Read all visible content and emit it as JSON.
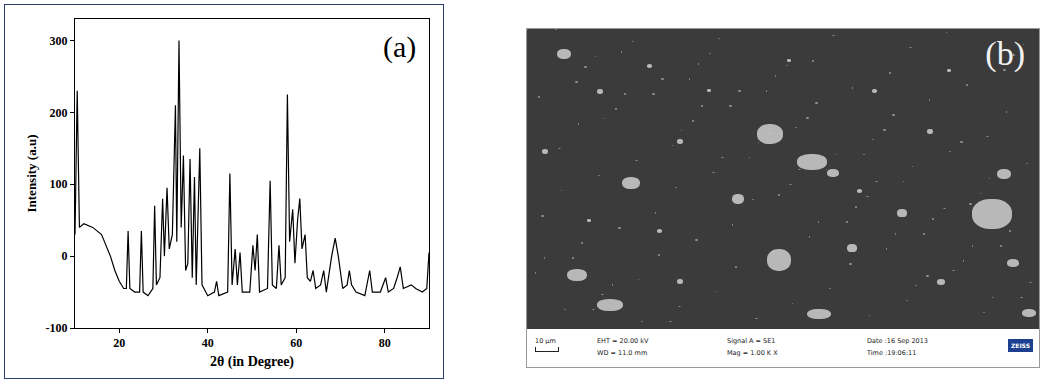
{
  "chart_data": {
    "type": "line",
    "x": [
      10.0,
      10.5,
      11.0,
      12,
      14,
      16,
      17,
      18,
      19,
      20,
      21,
      21.6,
      22.0,
      22.4,
      23.5,
      24.6,
      25.0,
      25.4,
      26.5,
      27.6,
      28.0,
      28.4,
      29.2,
      29.8,
      30.2,
      30.8,
      31.3,
      32.0,
      32.7,
      33.0,
      33.5,
      34.0,
      34.5,
      35.0,
      35.5,
      36.0,
      36.5,
      37.0,
      37.4,
      38.2,
      38.7,
      40,
      41.5,
      42,
      42.5,
      44.5,
      45,
      45.5,
      46.2,
      46.7,
      47.3,
      47.8,
      49.5,
      50.2,
      50.7,
      51.2,
      51.7,
      53.5,
      54.1,
      54.6,
      55.5,
      56.1,
      56.6,
      57.5,
      58.0,
      58.5,
      59.2,
      59.7,
      60.3,
      60.8,
      61.3,
      62.0,
      62.5,
      63.2,
      63.8,
      64.4,
      65.5,
      66.2,
      66.8,
      68.0,
      68.8,
      69.5,
      70.5,
      71.5,
      72.0,
      72.5,
      73.5,
      75.5,
      76.6,
      77.2,
      79,
      80.2,
      80.8,
      82,
      82.8,
      83.5,
      84.2,
      86,
      87,
      88.5,
      89.5,
      90
    ],
    "values": [
      30,
      230,
      40,
      45,
      40,
      30,
      15,
      0,
      -20,
      -35,
      -45,
      -45,
      35,
      -45,
      -50,
      -50,
      35,
      -50,
      -55,
      -45,
      70,
      -40,
      -30,
      80,
      0,
      95,
      10,
      30,
      210,
      20,
      300,
      40,
      140,
      -20,
      -10,
      135,
      -30,
      110,
      -40,
      150,
      -40,
      -55,
      -50,
      -35,
      -55,
      -50,
      115,
      -40,
      10,
      -40,
      5,
      -50,
      -50,
      15,
      -20,
      30,
      -50,
      -45,
      105,
      -40,
      -45,
      15,
      -40,
      -30,
      225,
      20,
      65,
      -10,
      50,
      80,
      10,
      30,
      -30,
      -35,
      -20,
      -45,
      -40,
      -20,
      -50,
      0,
      25,
      0,
      -45,
      -40,
      -20,
      -40,
      -50,
      -55,
      -20,
      -50,
      -50,
      -30,
      -50,
      -45,
      -30,
      -15,
      -45,
      -40,
      -45,
      -50,
      -45,
      5
    ],
    "color": "#000000",
    "xlim": [
      10,
      90
    ],
    "xticks": [
      20,
      40,
      60,
      80
    ],
    "ylim": [
      -100,
      330
    ],
    "yticks": [
      -100,
      0,
      100,
      200,
      300
    ],
    "x_label": "2θ (in Degree)",
    "y_label": "Intensity (a.u)",
    "annotations": [
      "(a)"
    ],
    "grid": false
  },
  "micrograph": {
    "label": "(b)",
    "scale_bar": "10 µm",
    "info": [
      [
        "EHT = 20.00 kV",
        "WD = 11.0 mm"
      ],
      [
        "Signal A = SE1",
        "Mag = 1.00 K X"
      ],
      [
        "Date :16 Sep 2013",
        "Time :19:06:11"
      ]
    ],
    "logo": "ZEISS"
  }
}
